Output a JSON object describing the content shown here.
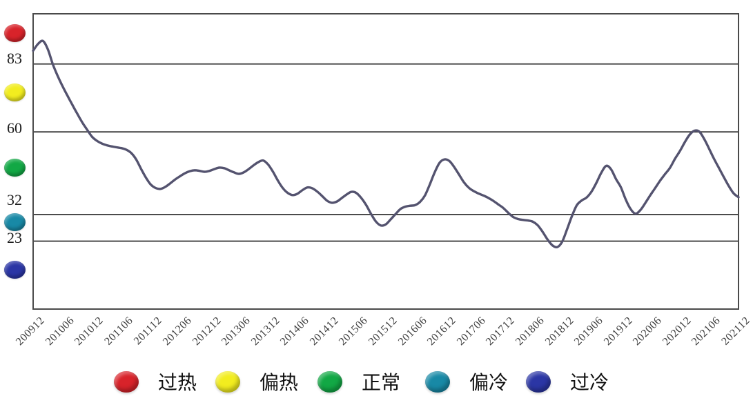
{
  "page": {
    "background": "#ffffff"
  },
  "styles": {
    "grid_color": "#3d3d3d",
    "border_color": "#4a4a4a",
    "line_color": "#54536f"
  },
  "chart_data": {
    "type": "line",
    "title": "",
    "xlabel": "",
    "ylabel": "",
    "ylim": [
      0,
      100
    ],
    "grid": "horizontal-only",
    "legend_position": "bottom",
    "gridlines_y": [
      83,
      60,
      32,
      23
    ],
    "y_tick_labels": [
      "83",
      "60",
      "32",
      "23"
    ],
    "x_tick_labels": [
      "200912",
      "201006",
      "201012",
      "201106",
      "201112",
      "201206",
      "201212",
      "201306",
      "201312",
      "201406",
      "201412",
      "201506",
      "201512",
      "201606",
      "201612",
      "201706",
      "201712",
      "201806",
      "201812",
      "201906",
      "201912",
      "202006",
      "202012",
      "202106",
      "202112"
    ],
    "zones": [
      {
        "label": "过热",
        "color": "#d8232a",
        "range": [
          83,
          100
        ]
      },
      {
        "label": "偏热",
        "color": "#f2ed1f",
        "range": [
          60,
          83
        ]
      },
      {
        "label": "正常",
        "color": "#12a845",
        "range": [
          32,
          60
        ]
      },
      {
        "label": "偏冷",
        "color": "#1889a6",
        "range": [
          23,
          32
        ]
      },
      {
        "label": "过冷",
        "color": "#2b36a5",
        "range": [
          0,
          23
        ]
      }
    ],
    "series": [
      {
        "start": "200912",
        "end": "202112",
        "interval": "monthly",
        "color": "#54536f",
        "values": [
          87.5,
          89.8,
          90.8,
          88.0,
          83.0,
          79.0,
          75.5,
          72.3,
          69.2,
          66.2,
          63.3,
          60.8,
          58.4,
          57.0,
          56.1,
          55.5,
          55.1,
          54.8,
          54.5,
          54.0,
          52.9,
          50.8,
          47.6,
          44.6,
          42.2,
          41.0,
          40.7,
          41.4,
          42.6,
          43.9,
          45.0,
          46.0,
          46.7,
          47.0,
          46.8,
          46.5,
          46.8,
          47.4,
          47.9,
          47.7,
          47.0,
          46.3,
          45.8,
          46.3,
          47.4,
          48.7,
          49.8,
          50.3,
          48.9,
          46.4,
          43.4,
          40.9,
          39.3,
          38.6,
          39.1,
          40.3,
          41.2,
          40.9,
          39.8,
          38.3,
          36.7,
          36.0,
          36.4,
          37.6,
          38.8,
          39.7,
          39.3,
          37.6,
          35.2,
          32.2,
          29.6,
          28.3,
          28.7,
          30.4,
          32.2,
          33.9,
          34.7,
          35.0,
          35.2,
          36.3,
          38.5,
          42.3,
          46.4,
          49.6,
          50.7,
          50.1,
          48.0,
          45.4,
          42.8,
          41.0,
          39.9,
          39.1,
          38.4,
          37.6,
          36.6,
          35.4,
          34.2,
          32.6,
          31.2,
          30.5,
          30.2,
          30.0,
          29.6,
          28.4,
          26.2,
          23.6,
          21.6,
          21.0,
          22.8,
          27.0,
          31.5,
          35.2,
          36.8,
          37.8,
          39.8,
          42.8,
          46.2,
          48.5,
          47.3,
          44.0,
          41.2,
          37.0,
          33.8,
          32.3,
          33.6,
          36.0,
          38.6,
          41.0,
          43.5,
          45.7,
          47.8,
          50.8,
          53.4,
          56.4,
          59.0,
          60.4,
          60.1,
          57.6,
          54.3,
          50.9,
          47.8,
          44.7,
          41.7,
          39.2,
          37.9
        ]
      }
    ]
  }
}
